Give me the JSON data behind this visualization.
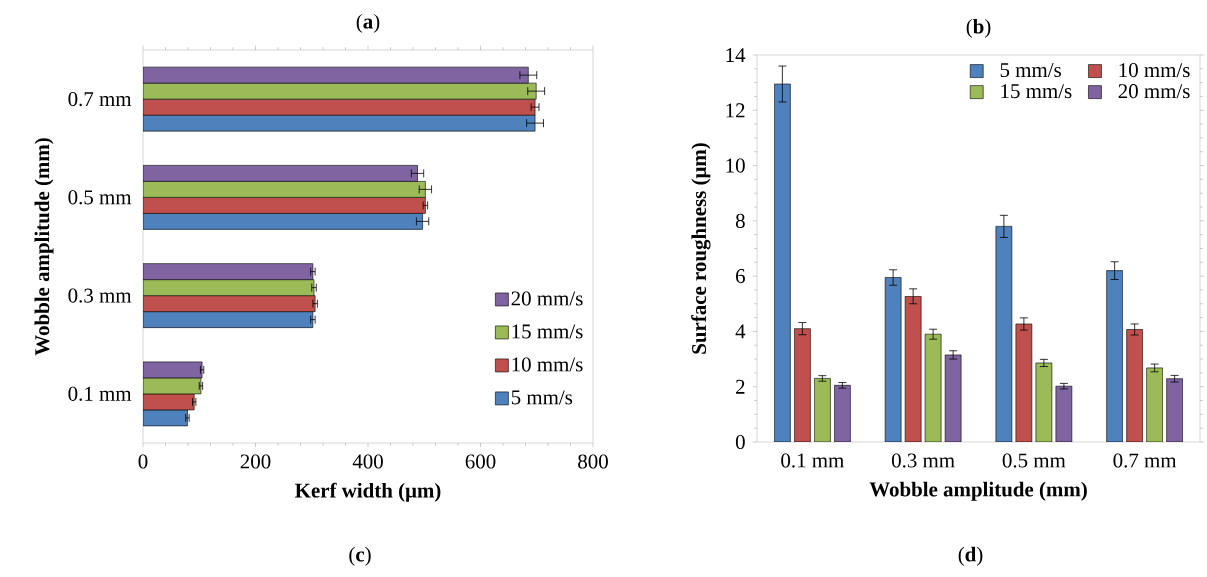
{
  "chart_data": [
    {
      "type": "bar",
      "title": "(**a**)",
      "orientation": "horizontal",
      "xlabel": "Kerf width (μm)",
      "ylabel": "Wobble amplitude (mm)",
      "categories": [
        "0.7 mm",
        "0.5 mm",
        "0.3 mm",
        "0.1 mm"
      ],
      "xlim": [
        0,
        800
      ],
      "xticks": [
        0,
        200,
        400,
        600,
        800
      ],
      "legend": "bottom right",
      "series": [
        {
          "name": "5 mm/s",
          "color": "#4f81bd",
          "values": [
            697,
            497,
            302,
            79
          ],
          "errors": [
            15,
            11,
            4,
            3
          ]
        },
        {
          "name": "10 mm/s",
          "color": "#c0504d",
          "values": [
            697,
            502,
            306,
            91
          ],
          "errors": [
            7,
            4,
            4,
            3
          ]
        },
        {
          "name": "15 mm/s",
          "color": "#9bbb59",
          "values": [
            699,
            502,
            304,
            103
          ],
          "errors": [
            15,
            11,
            4,
            3
          ]
        },
        {
          "name": "20 mm/s",
          "color": "#8064a2",
          "values": [
            685,
            488,
            302,
            105
          ],
          "errors": [
            15,
            11,
            4,
            3
          ]
        }
      ],
      "annotations": [
        "(**c**)"
      ]
    },
    {
      "type": "bar",
      "title": "(**b**)",
      "xlabel": "Wobble amplitude (mm)",
      "ylabel": "Surface roughness (μm)",
      "categories": [
        "0.1 mm",
        "0.3 mm",
        "0.5 mm",
        "0.7 mm"
      ],
      "ylim": [
        0,
        14
      ],
      "yticks": [
        0,
        2,
        4,
        6,
        8,
        10,
        12,
        14
      ],
      "legend": "top right",
      "series": [
        {
          "name": "5 mm/s",
          "color": "#4f81bd",
          "values": [
            12.95,
            5.95,
            7.8,
            6.2
          ],
          "errors": [
            0.65,
            0.28,
            0.4,
            0.32
          ]
        },
        {
          "name": "10 mm/s",
          "color": "#c0504d",
          "values": [
            4.1,
            5.27,
            4.27,
            4.07
          ],
          "errors": [
            0.22,
            0.27,
            0.22,
            0.2
          ]
        },
        {
          "name": "15 mm/s",
          "color": "#9bbb59",
          "values": [
            2.3,
            3.9,
            2.86,
            2.68
          ],
          "errors": [
            0.1,
            0.18,
            0.13,
            0.14
          ]
        },
        {
          "name": "20 mm/s",
          "color": "#8064a2",
          "values": [
            2.05,
            3.15,
            2.02,
            2.29
          ],
          "errors": [
            0.1,
            0.15,
            0.1,
            0.12
          ]
        }
      ],
      "annotations": [
        "(**d**)"
      ]
    }
  ]
}
